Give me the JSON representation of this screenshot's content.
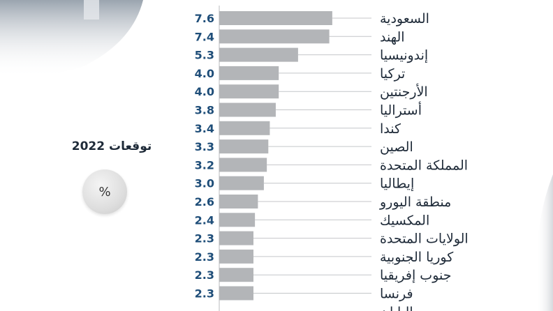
{
  "side_label": "توقعات 2022",
  "unit_label": "%",
  "colors": {
    "bar": "#b3b5b8",
    "value_text": "#1f4e79",
    "label_text": "#1e2a38",
    "line": "#c4c6c9"
  },
  "chart_data": {
    "type": "bar",
    "orientation": "horizontal",
    "title": "",
    "xlabel": "",
    "ylabel": "",
    "categories": [
      "السعودية",
      "الهند",
      "إندونيسيا",
      "تركيا",
      "الأرجنتين",
      "أستراليا",
      "كندا",
      "الصين",
      "المملكة المتحدة",
      "إيطاليا",
      "منطقة  اليورو",
      "المكسيك",
      "الولايات المتحدة",
      "كوريا الجنوبية",
      "جنوب إفريقيا",
      "فرنسا",
      "اليابان"
    ],
    "values": [
      7.6,
      7.4,
      5.3,
      4.0,
      4.0,
      3.8,
      3.4,
      3.3,
      3.2,
      3.0,
      2.6,
      2.4,
      2.3,
      2.3,
      2.3,
      2.3,
      null
    ],
    "value_labels": [
      "7.6",
      "7.4",
      "5.3",
      "4.0",
      "4.0",
      "3.8",
      "3.4",
      "3.3",
      "3.2",
      "3.0",
      "2.6",
      "2.4",
      "2.3",
      "2.3",
      "2.3",
      "2.3",
      ""
    ],
    "xlim": [
      0,
      12
    ],
    "grid": false,
    "legend": "none"
  }
}
